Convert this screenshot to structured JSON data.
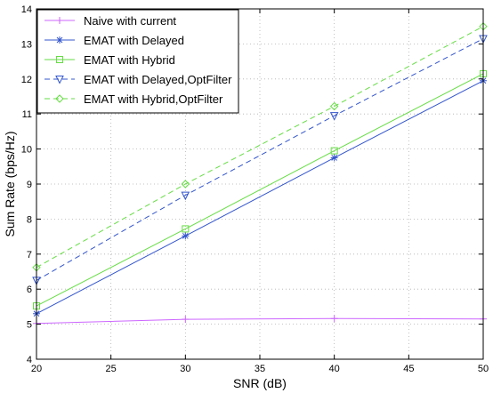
{
  "chart_data": {
    "type": "line",
    "xlabel": "SNR (dB)",
    "ylabel": "Sum Rate (bps/Hz)",
    "xlim": [
      20,
      50
    ],
    "ylim": [
      4,
      14
    ],
    "xticks": [
      "20",
      "25",
      "30",
      "35",
      "40",
      "45",
      "50"
    ],
    "yticks": [
      "4",
      "5",
      "6",
      "7",
      "8",
      "9",
      "10",
      "11",
      "12",
      "13",
      "14"
    ],
    "grid": true,
    "legend_position": "top-left",
    "x": [
      20,
      30,
      40,
      50
    ],
    "series": [
      {
        "name": "Naive with current",
        "values": [
          5.02,
          5.14,
          5.16,
          5.15
        ],
        "color": "#cc66ff",
        "dash": "solid",
        "marker": "plus"
      },
      {
        "name": "EMAT with Delayed",
        "values": [
          5.3,
          7.52,
          9.75,
          11.95
        ],
        "color": "#3355cc",
        "dash": "solid",
        "marker": "star"
      },
      {
        "name": "EMAT with Hybrid",
        "values": [
          5.52,
          7.72,
          9.95,
          12.15
        ],
        "color": "#66dd44",
        "dash": "solid",
        "marker": "square"
      },
      {
        "name": "EMAT with Delayed,OptFilter",
        "values": [
          6.25,
          8.68,
          10.95,
          13.15
        ],
        "color": "#3355cc",
        "dash": "dashed",
        "marker": "triangle-down"
      },
      {
        "name": "EMAT with Hybrid,OptFilter",
        "values": [
          6.62,
          9.0,
          11.22,
          13.5
        ],
        "color": "#66dd44",
        "dash": "dashed",
        "marker": "diamond"
      }
    ]
  }
}
